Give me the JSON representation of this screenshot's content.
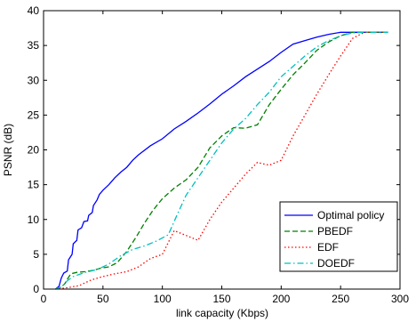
{
  "chart_data": {
    "type": "line",
    "title": "",
    "xlabel": "link capacity (Kbps)",
    "ylabel": "PSNR (dB)",
    "xlim": [
      0,
      300
    ],
    "ylim": [
      0,
      40
    ],
    "x_ticks": [
      "0",
      "50",
      "100",
      "150",
      "200",
      "250",
      "300"
    ],
    "y_ticks": [
      "0",
      "5",
      "10",
      "15",
      "20",
      "25",
      "30",
      "35",
      "40"
    ],
    "grid": false,
    "legend_position": "bottom-right",
    "series": [
      {
        "name": "Optimal policy",
        "color": "#0000ff",
        "style": "solid",
        "points": [
          [
            10,
            0
          ],
          [
            13,
            0.4
          ],
          [
            15,
            1.6
          ],
          [
            17,
            2.3
          ],
          [
            20,
            2.6
          ],
          [
            21,
            4.2
          ],
          [
            24,
            5
          ],
          [
            25,
            6.5
          ],
          [
            28,
            7
          ],
          [
            29,
            8.5
          ],
          [
            32,
            8.8
          ],
          [
            34,
            9.7
          ],
          [
            37,
            9.8
          ],
          [
            38,
            10.6
          ],
          [
            41,
            11
          ],
          [
            42,
            12
          ],
          [
            45,
            12.8
          ],
          [
            47,
            13.6
          ],
          [
            50,
            14.2
          ],
          [
            55,
            15
          ],
          [
            60,
            16
          ],
          [
            65,
            16.8
          ],
          [
            70,
            17.5
          ],
          [
            75,
            18.5
          ],
          [
            80,
            19.3
          ],
          [
            90,
            20.6
          ],
          [
            100,
            21.6
          ],
          [
            110,
            23
          ],
          [
            120,
            24.1
          ],
          [
            130,
            25.3
          ],
          [
            140,
            26.6
          ],
          [
            150,
            28
          ],
          [
            160,
            29.2
          ],
          [
            170,
            30.5
          ],
          [
            180,
            31.6
          ],
          [
            190,
            32.7
          ],
          [
            200,
            34
          ],
          [
            210,
            35.2
          ],
          [
            220,
            35.7
          ],
          [
            230,
            36.2
          ],
          [
            240,
            36.6
          ],
          [
            250,
            36.9
          ],
          [
            260,
            36.9
          ],
          [
            270,
            36.9
          ],
          [
            280,
            36.9
          ],
          [
            290,
            36.9
          ]
        ]
      },
      {
        "name": "PBEDF",
        "color": "#008000",
        "style": "dashed",
        "points": [
          [
            10,
            0
          ],
          [
            15,
            0.3
          ],
          [
            18,
            0.8
          ],
          [
            20,
            1.4
          ],
          [
            23,
            2.2
          ],
          [
            28,
            2.4
          ],
          [
            35,
            2.5
          ],
          [
            42,
            2.7
          ],
          [
            48,
            3
          ],
          [
            55,
            3.2
          ],
          [
            62,
            3.8
          ],
          [
            70,
            5.4
          ],
          [
            78,
            7.5
          ],
          [
            85,
            9.5
          ],
          [
            92,
            11.3
          ],
          [
            100,
            13
          ],
          [
            110,
            14.5
          ],
          [
            120,
            15.7
          ],
          [
            130,
            17.5
          ],
          [
            140,
            20.3
          ],
          [
            150,
            22
          ],
          [
            160,
            23.2
          ],
          [
            170,
            23.1
          ],
          [
            180,
            23.6
          ],
          [
            190,
            26.5
          ],
          [
            200,
            28.7
          ],
          [
            210,
            30.8
          ],
          [
            220,
            32.5
          ],
          [
            230,
            34.3
          ],
          [
            240,
            35.5
          ],
          [
            250,
            36.4
          ],
          [
            260,
            36.9
          ],
          [
            270,
            36.9
          ],
          [
            280,
            36.9
          ],
          [
            290,
            36.9
          ]
        ]
      },
      {
        "name": "EDF",
        "color": "#ff0000",
        "style": "dotted",
        "points": [
          [
            10,
            0
          ],
          [
            20,
            0.2
          ],
          [
            30,
            0.5
          ],
          [
            40,
            1.3
          ],
          [
            50,
            1.8
          ],
          [
            60,
            2.2
          ],
          [
            70,
            2.5
          ],
          [
            80,
            3.2
          ],
          [
            90,
            4.4
          ],
          [
            100,
            5
          ],
          [
            110,
            8.4
          ],
          [
            120,
            7.7
          ],
          [
            130,
            7
          ],
          [
            140,
            10
          ],
          [
            150,
            12.5
          ],
          [
            160,
            14.5
          ],
          [
            170,
            16.5
          ],
          [
            180,
            18.2
          ],
          [
            185,
            18
          ],
          [
            190,
            17.8
          ],
          [
            200,
            18.5
          ],
          [
            210,
            22
          ],
          [
            220,
            25
          ],
          [
            230,
            28
          ],
          [
            240,
            30.8
          ],
          [
            250,
            33.5
          ],
          [
            260,
            36
          ],
          [
            270,
            36.9
          ],
          [
            280,
            36.9
          ],
          [
            290,
            36.9
          ]
        ]
      },
      {
        "name": "DOEDF",
        "color": "#00bfbf",
        "style": "dashdot",
        "points": [
          [
            10,
            0
          ],
          [
            15,
            0.3
          ],
          [
            18,
            0.8
          ],
          [
            20,
            1.2
          ],
          [
            25,
            1.8
          ],
          [
            35,
            2.4
          ],
          [
            45,
            2.8
          ],
          [
            55,
            3.6
          ],
          [
            65,
            4.8
          ],
          [
            75,
            5.7
          ],
          [
            85,
            6.2
          ],
          [
            95,
            6.9
          ],
          [
            105,
            7.8
          ],
          [
            112,
            10.5
          ],
          [
            120,
            13.5
          ],
          [
            130,
            16
          ],
          [
            140,
            18.5
          ],
          [
            150,
            21
          ],
          [
            160,
            23
          ],
          [
            170,
            24.5
          ],
          [
            180,
            26.5
          ],
          [
            190,
            28.3
          ],
          [
            200,
            30.5
          ],
          [
            210,
            32
          ],
          [
            220,
            33.5
          ],
          [
            230,
            34.8
          ],
          [
            240,
            35.7
          ],
          [
            250,
            36.4
          ],
          [
            260,
            36.8
          ],
          [
            270,
            36.9
          ],
          [
            280,
            36.9
          ],
          [
            290,
            36.9
          ]
        ]
      }
    ]
  }
}
